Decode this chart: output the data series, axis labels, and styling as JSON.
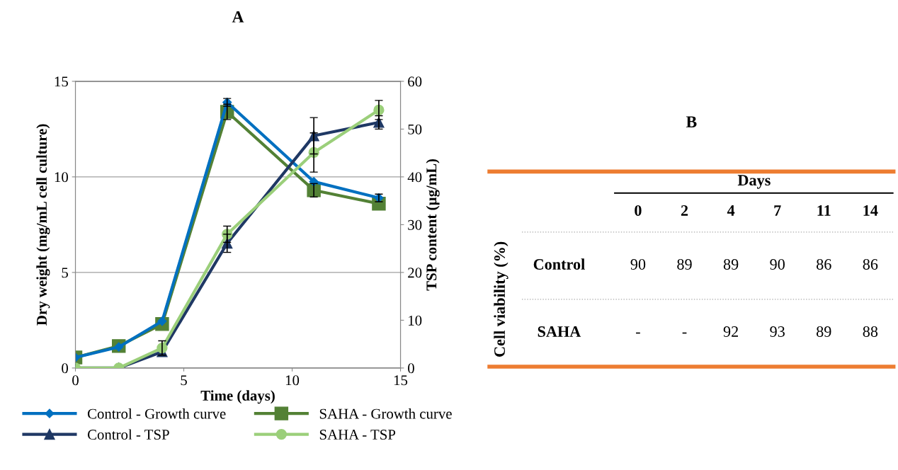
{
  "chart_data": [
    {
      "type": "line",
      "title": "A",
      "xlabel": "Time (days)",
      "ylabel": "Dry weight (mg/mL cell culture)",
      "y2label": "TSP content (µg/mL)",
      "xlim": [
        0,
        15
      ],
      "xticks": [
        0,
        5,
        10,
        15
      ],
      "ylim": [
        0,
        15
      ],
      "yticks": [
        0,
        5,
        10,
        15
      ],
      "y2lim": [
        0,
        60
      ],
      "y2ticks": [
        0,
        10,
        20,
        30,
        40,
        50,
        60
      ],
      "grid": "y",
      "legend": "bottom",
      "line_style": "solid",
      "series": [
        {
          "name": "Control - Growth curve",
          "color": "#0070c0",
          "marker": "diamond",
          "x": [
            0,
            2,
            4,
            7,
            11,
            14
          ],
          "values": [
            0.55,
            1.1,
            2.45,
            13.9,
            9.75,
            8.9
          ],
          "errors": [
            null,
            null,
            null,
            0.2,
            null,
            0.2
          ]
        },
        {
          "name": "SAHA - Growth curve",
          "color": "#538135",
          "marker": "square",
          "x": [
            0,
            2,
            4,
            7,
            11,
            14
          ],
          "values": [
            0.55,
            1.15,
            2.3,
            13.4,
            9.3,
            8.6
          ],
          "errors": [
            null,
            null,
            null,
            0.4,
            0.35,
            null
          ]
        },
        {
          "name": "Control - TSP",
          "color": "#1f3864",
          "marker": "triangle",
          "axis": "y2",
          "x": [
            0,
            2,
            4,
            7,
            11,
            14
          ],
          "values": [
            0,
            0,
            3.4,
            26.1,
            48.6,
            51.4
          ],
          "errors": [
            null,
            null,
            null,
            1.9,
            3.8,
            1.4
          ]
        },
        {
          "name": "SAHA - TSP",
          "color": "#9bcf7a",
          "marker": "circle",
          "axis": "y2",
          "x": [
            0,
            2,
            4,
            7,
            11,
            14
          ],
          "values": [
            0,
            0,
            4.2,
            28.0,
            45.1,
            54.0
          ],
          "errors": [
            null,
            null,
            1.5,
            1.7,
            4.1,
            2.0
          ]
        }
      ]
    },
    {
      "type": "other",
      "title": "B",
      "xlabel": "Days",
      "ylabel": "Cell viability (%)",
      "categories": [
        "0",
        "2",
        "4",
        "7",
        "11",
        "14"
      ],
      "y_categories": [
        "Control",
        "SAHA"
      ],
      "cell_labels": [
        [
          "90",
          "89",
          "89",
          "90",
          "86",
          "86"
        ],
        [
          "-",
          "-",
          "92",
          "93",
          "89",
          "88"
        ]
      ]
    }
  ]
}
